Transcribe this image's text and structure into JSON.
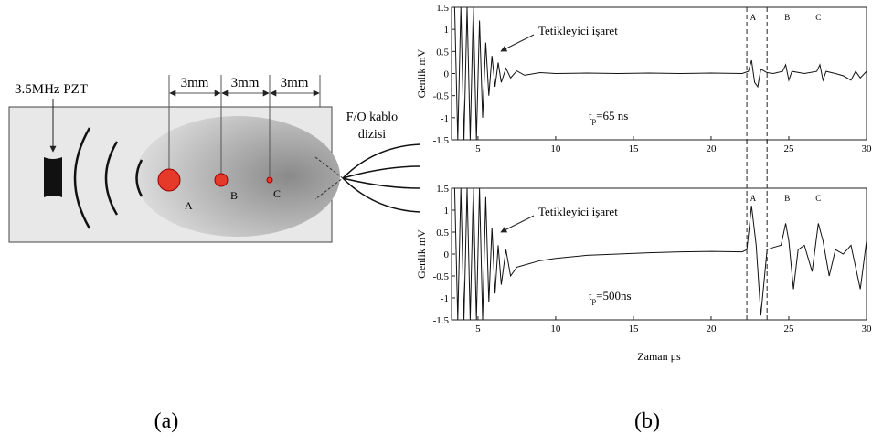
{
  "diagram": {
    "source_label": "3.5MHz PZT",
    "spacings": [
      "3mm",
      "3mm",
      "3mm"
    ],
    "points": [
      "A",
      "B",
      "C"
    ],
    "cable_label": [
      "F/O kablo",
      "dizisi"
    ]
  },
  "captions": [
    "(a)",
    "(b)"
  ],
  "chart_data": [
    {
      "type": "line",
      "y_label": "Genlik mV",
      "annotation": "Tetikleyici işaret",
      "pulse_label": {
        "symbol": "t",
        "subscript": "p",
        "text": "=65 ns"
      },
      "xlim": [
        3.3,
        30
      ],
      "ylim": [
        -1.5,
        1.5
      ],
      "xticks": [
        5,
        10,
        15,
        20,
        25,
        30
      ],
      "yticks": [
        -1.5,
        -1,
        -0.5,
        0,
        0.5,
        1,
        1.5
      ],
      "vlines": [
        22.3,
        23.6
      ],
      "point_labels": [
        {
          "text": "A",
          "x": 22.7
        },
        {
          "text": "B",
          "x": 24.9
        },
        {
          "text": "C",
          "x": 26.9
        }
      ],
      "color": "#111111",
      "x": [
        3.5,
        3.7,
        3.9,
        4.1,
        4.3,
        4.5,
        4.7,
        4.9,
        5.1,
        5.3,
        5.5,
        5.7,
        5.9,
        6.1,
        6.3,
        6.5,
        6.8,
        7.1,
        7.5,
        8,
        9,
        10,
        12,
        14,
        16,
        18,
        20,
        22,
        22.4,
        22.6,
        22.8,
        23,
        23.2,
        23.6,
        24,
        24.6,
        24.8,
        25,
        25.2,
        26,
        26.8,
        27,
        27.2,
        27.4,
        28,
        28.5,
        29,
        29.3,
        29.6,
        30
      ],
      "values": [
        1.5,
        -1.5,
        1.5,
        -1.5,
        1.5,
        -1.5,
        1.5,
        -1.5,
        1.2,
        -1.0,
        0.7,
        -0.5,
        0.4,
        -0.3,
        0.25,
        -0.2,
        0.12,
        -0.1,
        0.06,
        -0.04,
        0.02,
        0,
        0.01,
        0,
        0.01,
        0,
        0.01,
        0,
        0.05,
        0.3,
        -0.2,
        -0.3,
        0.1,
        0.02,
        0,
        0.05,
        0.2,
        -0.15,
        0.05,
        0,
        0.05,
        0.2,
        -0.15,
        0.05,
        0,
        -0.05,
        -0.15,
        0.05,
        -0.1,
        0.05
      ]
    },
    {
      "type": "line",
      "y_label": "Genlik mV",
      "x_label": "Zaman μs",
      "annotation": "Tetikleyici işaret",
      "pulse_label": {
        "symbol": "t",
        "subscript": "p",
        "text": "=500ns"
      },
      "xlim": [
        3.3,
        30
      ],
      "ylim": [
        -1.5,
        1.5
      ],
      "xticks": [
        5,
        10,
        15,
        20,
        25,
        30
      ],
      "yticks": [
        -1.5,
        -1,
        -0.5,
        0,
        0.5,
        1,
        1.5
      ],
      "vlines": [
        22.3,
        23.6
      ],
      "point_labels": [
        {
          "text": "A",
          "x": 22.7
        },
        {
          "text": "B",
          "x": 24.9
        },
        {
          "text": "C",
          "x": 26.9
        }
      ],
      "color": "#111111",
      "x": [
        3.5,
        3.7,
        3.9,
        4.1,
        4.3,
        4.5,
        4.7,
        4.9,
        5.1,
        5.3,
        5.5,
        5.7,
        5.9,
        6.1,
        6.3,
        6.5,
        6.8,
        7.1,
        7.5,
        8,
        9,
        10,
        12,
        14,
        16,
        18,
        20,
        22,
        22.3,
        22.6,
        22.9,
        23.2,
        23.6,
        24,
        24.5,
        24.8,
        25,
        25.3,
        25.6,
        26,
        26.5,
        26.9,
        27.2,
        27.6,
        28,
        28.5,
        29,
        29.6,
        30
      ],
      "values": [
        1.5,
        -1.5,
        1.5,
        -1.5,
        1.5,
        -1.5,
        1.5,
        -1.5,
        1.5,
        -1.5,
        1.3,
        -1.1,
        0.6,
        -0.9,
        0.2,
        -0.7,
        0.1,
        -0.5,
        -0.3,
        -0.25,
        -0.15,
        -0.1,
        -0.03,
        0,
        0.03,
        0.05,
        0.06,
        0.05,
        0.1,
        1.1,
        0.2,
        -1.4,
        0.1,
        0.15,
        0.2,
        0.7,
        0.3,
        -0.8,
        0.1,
        0.2,
        -0.4,
        0.7,
        0.3,
        -0.5,
        0.1,
        0,
        0.2,
        -0.8,
        0.3
      ]
    }
  ]
}
